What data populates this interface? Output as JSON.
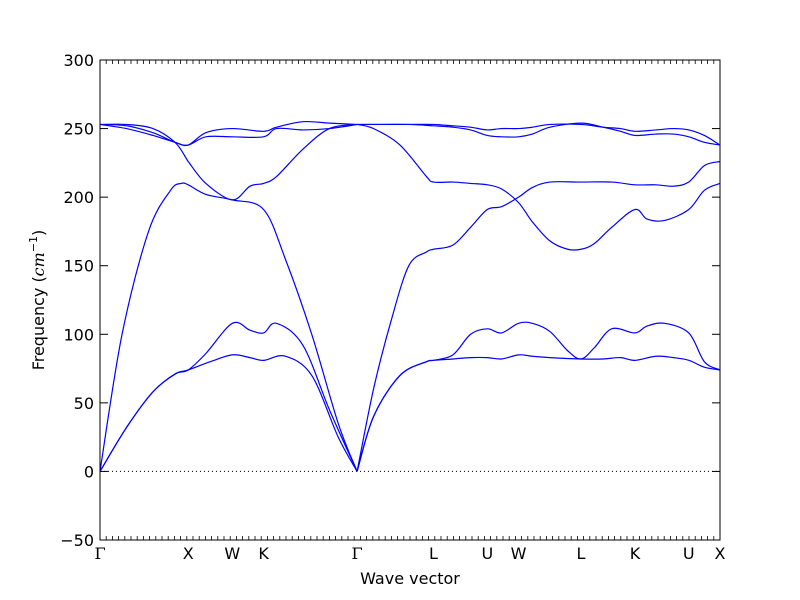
{
  "chart_data": {
    "type": "line",
    "title": "",
    "xlabel": "Wave vector",
    "ylabel_text": "Frequency (",
    "ylabel_unit_base": "cm",
    "ylabel_unit_exp": "−1",
    "ylabel_close": ")",
    "ylim": [
      -50,
      300
    ],
    "yticks": [
      -50,
      0,
      50,
      100,
      150,
      200,
      250,
      300
    ],
    "ytick_labels": [
      "−50",
      "0",
      "50",
      "100",
      "150",
      "200",
      "250",
      "300"
    ],
    "zero_line": "dotted",
    "grid": false,
    "color": "#0000ff",
    "high_symmetry_points": [
      {
        "label": "Γ",
        "x": 0.0
      },
      {
        "label": "X",
        "x": 1.0
      },
      {
        "label": "W",
        "x": 1.5
      },
      {
        "label": "K",
        "x": 1.854
      },
      {
        "label": "Γ",
        "x": 2.914
      },
      {
        "label": "L",
        "x": 3.78
      },
      {
        "label": "U",
        "x": 4.39
      },
      {
        "label": "W",
        "x": 4.744
      },
      {
        "label": "L",
        "x": 5.451
      },
      {
        "label": "K",
        "x": 6.063
      },
      {
        "label": "U",
        "x": 6.673
      },
      {
        "label": "X",
        "x": 7.027
      }
    ],
    "xlim": [
      0,
      7.027
    ],
    "series": [
      {
        "x": [
          0,
          0.3,
          0.6,
          0.85,
          1.0,
          1.25,
          1.5,
          1.7,
          1.854,
          2.1,
          2.4,
          2.7,
          2.914
        ],
        "y": [
          0,
          32,
          58,
          71,
          74,
          80,
          85,
          83,
          81,
          84,
          70,
          25,
          0
        ]
      },
      {
        "x": [
          0,
          0.3,
          0.6,
          0.85,
          1.0,
          1.2,
          1.5,
          1.7,
          1.854,
          2.0,
          2.3,
          2.6,
          2.914
        ],
        "y": [
          0,
          32,
          58,
          71,
          74,
          86,
          108,
          103,
          101,
          108,
          92,
          45,
          0
        ]
      },
      {
        "x": [
          0,
          0.25,
          0.55,
          0.8,
          0.92,
          1.0,
          1.2,
          1.5,
          1.854,
          2.1,
          2.4,
          2.7,
          2.914
        ],
        "y": [
          0,
          100,
          175,
          205,
          210,
          209,
          202,
          198,
          191,
          155,
          100,
          35,
          0
        ]
      },
      {
        "x": [
          0,
          0.3,
          0.6,
          0.85,
          0.98,
          1.0,
          1.2,
          1.5,
          1.7,
          1.854,
          2.0,
          2.3,
          2.6,
          2.914
        ],
        "y": [
          253,
          253,
          250,
          240,
          228,
          226,
          210,
          198,
          208,
          210,
          215,
          235,
          250,
          253
        ]
      },
      {
        "x": [
          0,
          0.3,
          0.6,
          0.85,
          1.0,
          1.2,
          1.5,
          1.854,
          2.0,
          2.3,
          2.6,
          2.914
        ],
        "y": [
          253,
          252,
          247,
          240,
          238,
          244,
          244,
          244,
          250,
          249,
          250,
          253
        ]
      },
      {
        "x": [
          0,
          0.3,
          0.6,
          0.85,
          1.0,
          1.2,
          1.5,
          1.854,
          2.0,
          2.3,
          2.6,
          2.914
        ],
        "y": [
          253,
          250,
          245,
          240,
          238,
          247,
          250,
          248,
          251,
          255,
          254,
          253
        ]
      },
      {
        "x": [
          2.914,
          3.1,
          3.4,
          3.7,
          3.78,
          4.0,
          4.2,
          4.39,
          4.55,
          4.744,
          4.9,
          5.1,
          5.451,
          5.7,
          5.9,
          6.063,
          6.3,
          6.5,
          6.673,
          6.85,
          7.027
        ],
        "y": [
          0,
          40,
          70,
          80,
          81,
          82,
          83,
          83,
          82,
          85,
          84,
          83,
          82,
          82,
          83,
          81,
          84,
          83,
          81,
          76,
          74
        ]
      },
      {
        "x": [
          2.914,
          3.1,
          3.4,
          3.7,
          3.78,
          4.0,
          4.2,
          4.39,
          4.55,
          4.744,
          4.9,
          5.1,
          5.3,
          5.451,
          5.6,
          5.8,
          6.063,
          6.2,
          6.4,
          6.673,
          6.85,
          7.027
        ],
        "y": [
          0,
          40,
          70,
          80,
          81,
          85,
          100,
          104,
          101,
          108,
          108,
          102,
          88,
          82,
          90,
          104,
          101,
          106,
          108,
          101,
          80,
          74
        ]
      },
      {
        "x": [
          2.914,
          3.1,
          3.3,
          3.5,
          3.7,
          3.78,
          4.0,
          4.2,
          4.39,
          4.55,
          4.744,
          4.9,
          5.1,
          5.451,
          5.8,
          6.063,
          6.3,
          6.5,
          6.673,
          6.85,
          7.027
        ],
        "y": [
          0,
          60,
          110,
          150,
          160,
          162,
          165,
          178,
          191,
          193,
          200,
          207,
          211,
          211,
          211,
          209,
          209,
          208,
          211,
          223,
          226
        ]
      },
      {
        "x": [
          2.914,
          3.1,
          3.4,
          3.7,
          3.78,
          4.0,
          4.2,
          4.39,
          4.55,
          4.744,
          4.9,
          5.1,
          5.3,
          5.451,
          5.6,
          5.8,
          6.063,
          6.2,
          6.4,
          6.673,
          6.85,
          7.027
        ],
        "y": [
          253,
          250,
          238,
          215,
          211,
          211,
          210,
          209,
          206,
          196,
          182,
          168,
          162,
          162,
          166,
          178,
          191,
          184,
          183,
          191,
          205,
          210
        ]
      },
      {
        "x": [
          2.914,
          3.2,
          3.5,
          3.78,
          4.0,
          4.2,
          4.39,
          4.55,
          4.744,
          4.9,
          5.1,
          5.451,
          5.7,
          5.9,
          6.063,
          6.3,
          6.5,
          6.673,
          6.85,
          7.027
        ],
        "y": [
          253,
          253,
          253,
          253,
          252,
          251,
          249,
          250,
          250,
          251,
          253,
          253,
          251,
          250,
          248,
          249,
          250,
          249,
          245,
          238
        ]
      },
      {
        "x": [
          2.914,
          3.2,
          3.5,
          3.78,
          4.0,
          4.2,
          4.39,
          4.55,
          4.744,
          4.9,
          5.1,
          5.451,
          5.7,
          5.9,
          6.063,
          6.3,
          6.5,
          6.673,
          6.85,
          7.027
        ],
        "y": [
          253,
          253,
          253,
          252,
          251,
          249,
          245,
          244,
          244,
          246,
          251,
          254,
          251,
          248,
          245,
          246,
          246,
          244,
          240,
          238
        ]
      }
    ]
  }
}
